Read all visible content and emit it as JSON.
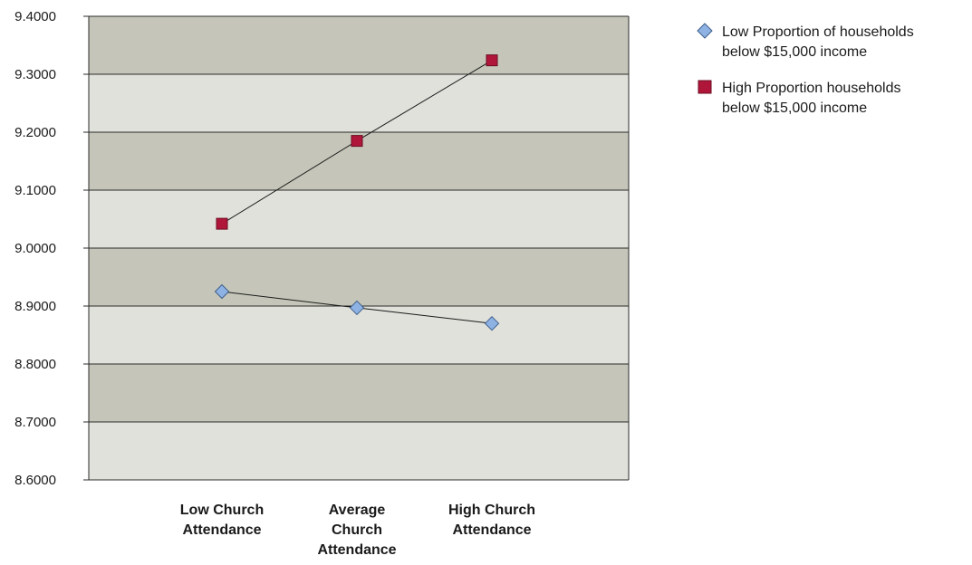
{
  "chart_data": {
    "type": "line",
    "title": "",
    "xlabel": "",
    "ylabel": "",
    "categories": [
      [
        "Low Church",
        "Attendance"
      ],
      [
        "Average",
        "Church",
        "Attendance"
      ],
      [
        "High Church",
        "Attendance"
      ]
    ],
    "ylim": [
      8.6,
      9.4
    ],
    "yticks": [
      "9.4000",
      "9.3000",
      "9.2000",
      "9.1000",
      "9.0000",
      "8.9000",
      "8.8000",
      "8.7000",
      "8.6000"
    ],
    "ytick_values": [
      9.4,
      9.3,
      9.2,
      9.1,
      9.0,
      8.9,
      8.8,
      8.7,
      8.6
    ],
    "grid": true,
    "legend_position": "top-right",
    "band_colors": [
      "#c5c6b9",
      "#e0e1db"
    ],
    "series": [
      {
        "name": [
          "Low Proportion of households",
          "below $15,000 income"
        ],
        "values": [
          8.925,
          8.897,
          8.87
        ],
        "marker": "diamond",
        "color": "#8eb2e3",
        "stroke": "#3f5f8a"
      },
      {
        "name": [
          "High Proportion households",
          "below $15,000 income"
        ],
        "values": [
          9.042,
          9.185,
          9.324
        ],
        "marker": "square",
        "color": "#b0163a",
        "stroke": "#6d0c22"
      }
    ]
  }
}
